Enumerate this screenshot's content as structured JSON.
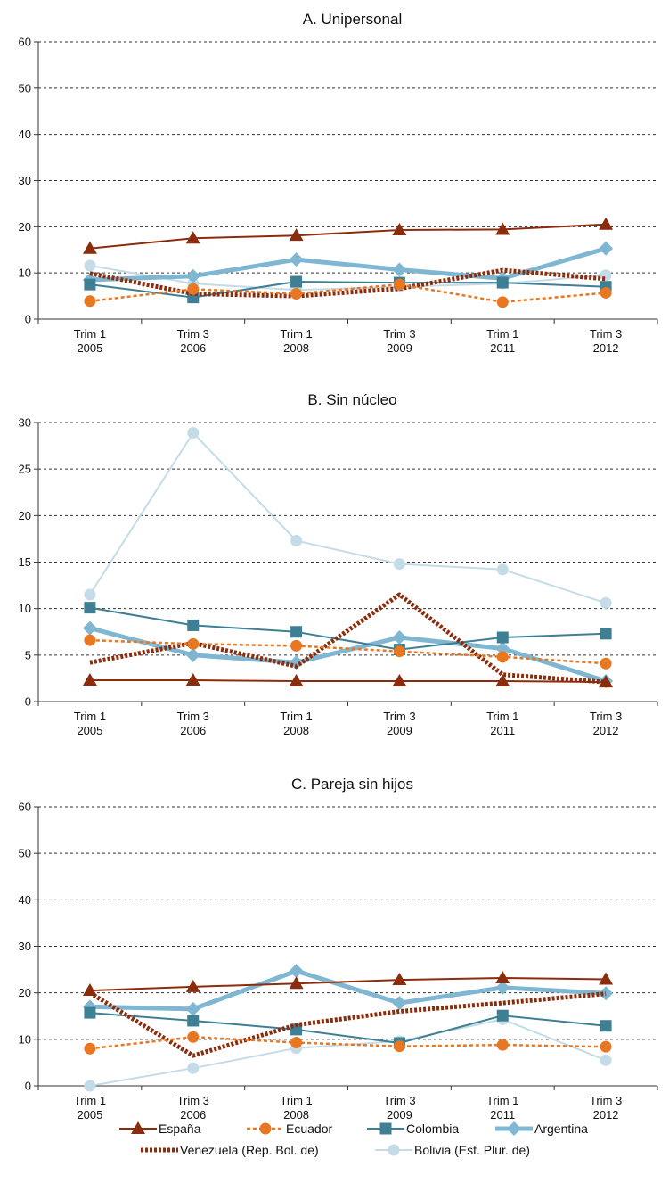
{
  "chart_data": [
    {
      "type": "line",
      "title": "A. Unipersonal",
      "xlabel": "",
      "ylabel": "",
      "categories": [
        "Trim 1 2005",
        "Trim 3 2006",
        "Trim 1 2008",
        "Trim 3 2009",
        "Trim 1 2011",
        "Trim 3 2012"
      ],
      "category_lines": [
        [
          "Trim 1",
          "2005"
        ],
        [
          "Trim 3",
          "2006"
        ],
        [
          "Trim 1",
          "2008"
        ],
        [
          "Trim 3",
          "2009"
        ],
        [
          "Trim 1",
          "2011"
        ],
        [
          "Trim 3",
          "2012"
        ]
      ],
      "ylim": [
        0,
        60
      ],
      "yticks": [
        0,
        10,
        20,
        30,
        40,
        50,
        60
      ],
      "grid": true,
      "series": [
        {
          "name": "España",
          "values": [
            15.3,
            17.5,
            18.1,
            19.3,
            19.4,
            20.5
          ]
        },
        {
          "name": "Ecuador",
          "values": [
            3.9,
            6.5,
            5.5,
            7.5,
            3.7,
            5.7
          ]
        },
        {
          "name": "Colombia",
          "values": [
            7.5,
            4.7,
            8.1,
            7.9,
            7.9,
            7.0
          ]
        },
        {
          "name": "Argentina",
          "values": [
            8.5,
            9.3,
            12.9,
            10.7,
            8.8,
            15.3
          ]
        },
        {
          "name": "Venezuela (Rep. Bol. de)",
          "values": [
            9.9,
            5.5,
            5.0,
            6.6,
            10.6,
            8.7
          ]
        },
        {
          "name": "Bolivia (Est. Plur. de)",
          "values": [
            11.6,
            7.7,
            6.3,
            7.0,
            7.7,
            9.5
          ]
        }
      ]
    },
    {
      "type": "line",
      "title": "B. Sin núcleo",
      "xlabel": "",
      "ylabel": "",
      "categories": [
        "Trim 1 2005",
        "Trim 3 2006",
        "Trim 1 2008",
        "Trim 3 2009",
        "Trim 1 2011",
        "Trim 3 2012"
      ],
      "category_lines": [
        [
          "Trim 1",
          "2005"
        ],
        [
          "Trim 3",
          "2006"
        ],
        [
          "Trim 1",
          "2008"
        ],
        [
          "Trim 3",
          "2009"
        ],
        [
          "Trim 1",
          "2011"
        ],
        [
          "Trim 3",
          "2012"
        ]
      ],
      "ylim": [
        0,
        30
      ],
      "yticks": [
        0,
        5,
        10,
        15,
        20,
        25,
        30
      ],
      "grid": true,
      "series": [
        {
          "name": "España",
          "values": [
            2.3,
            2.3,
            2.2,
            2.2,
            2.2,
            2.1
          ]
        },
        {
          "name": "Ecuador",
          "values": [
            6.6,
            6.2,
            6.0,
            5.4,
            4.8,
            4.1
          ]
        },
        {
          "name": "Colombia",
          "values": [
            10.1,
            8.2,
            7.5,
            5.6,
            6.9,
            7.3
          ]
        },
        {
          "name": "Argentina",
          "values": [
            7.9,
            5.0,
            4.2,
            6.9,
            5.7,
            2.2
          ]
        },
        {
          "name": "Venezuela (Rep. Bol. de)",
          "values": [
            4.2,
            6.3,
            3.8,
            11.5,
            2.9,
            2.1
          ]
        },
        {
          "name": "Bolivia (Est. Plur. de)",
          "values": [
            11.5,
            28.9,
            17.3,
            14.8,
            14.2,
            10.6
          ]
        }
      ]
    },
    {
      "type": "line",
      "title": "C. Pareja sin hijos",
      "xlabel": "",
      "ylabel": "",
      "categories": [
        "Trim 1 2005",
        "Trim 3 2006",
        "Trim 1 2008",
        "Trim 3 2009",
        "Trim 1 2011",
        "Trim 3 2012"
      ],
      "category_lines": [
        [
          "Trim 1",
          "2005"
        ],
        [
          "Trim 3",
          "2006"
        ],
        [
          "Trim 1",
          "2008"
        ],
        [
          "Trim 3",
          "2009"
        ],
        [
          "Trim 1",
          "2011"
        ],
        [
          "Trim 3",
          "2012"
        ]
      ],
      "ylim": [
        0,
        60
      ],
      "yticks": [
        0,
        10,
        20,
        30,
        40,
        50,
        60
      ],
      "grid": true,
      "series": [
        {
          "name": "España",
          "values": [
            20.5,
            21.3,
            22.0,
            22.8,
            23.2,
            22.9
          ]
        },
        {
          "name": "Ecuador",
          "values": [
            8.0,
            10.5,
            9.3,
            8.5,
            8.8,
            8.4
          ]
        },
        {
          "name": "Colombia",
          "values": [
            15.7,
            14.0,
            12.1,
            9.2,
            15.1,
            12.9
          ]
        },
        {
          "name": "Argentina",
          "values": [
            17.0,
            16.5,
            24.7,
            17.8,
            21.1,
            19.9
          ]
        },
        {
          "name": "Venezuela (Rep. Bol. de)",
          "values": [
            20.0,
            6.5,
            13.1,
            16.0,
            17.8,
            19.8
          ]
        },
        {
          "name": "Bolivia (Est. Plur. de)",
          "values": [
            0.0,
            3.8,
            8.1,
            9.6,
            14.3,
            5.5
          ]
        }
      ]
    }
  ],
  "legend": {
    "placement": "bottom",
    "items": [
      {
        "name": "España",
        "color": "#8b2d0c",
        "marker": "triangle",
        "dash": "solid",
        "width": 2
      },
      {
        "name": "Ecuador",
        "color": "#e87722",
        "marker": "circle",
        "dash": "dotted",
        "width": 2.5
      },
      {
        "name": "Colombia",
        "color": "#3f7f93",
        "marker": "square",
        "dash": "solid",
        "width": 2
      },
      {
        "name": "Argentina",
        "color": "#7fb7d2",
        "marker": "diamond",
        "dash": "solid",
        "width": 5
      },
      {
        "name": "Venezuela (Rep. Bol. de)",
        "color": "#8b2d0c",
        "marker": "none",
        "dash": "dotted",
        "width": 5
      },
      {
        "name": "Bolivia (Est. Plur. de)",
        "color": "#c4dce8",
        "marker": "circle",
        "dash": "solid",
        "width": 2
      }
    ]
  }
}
